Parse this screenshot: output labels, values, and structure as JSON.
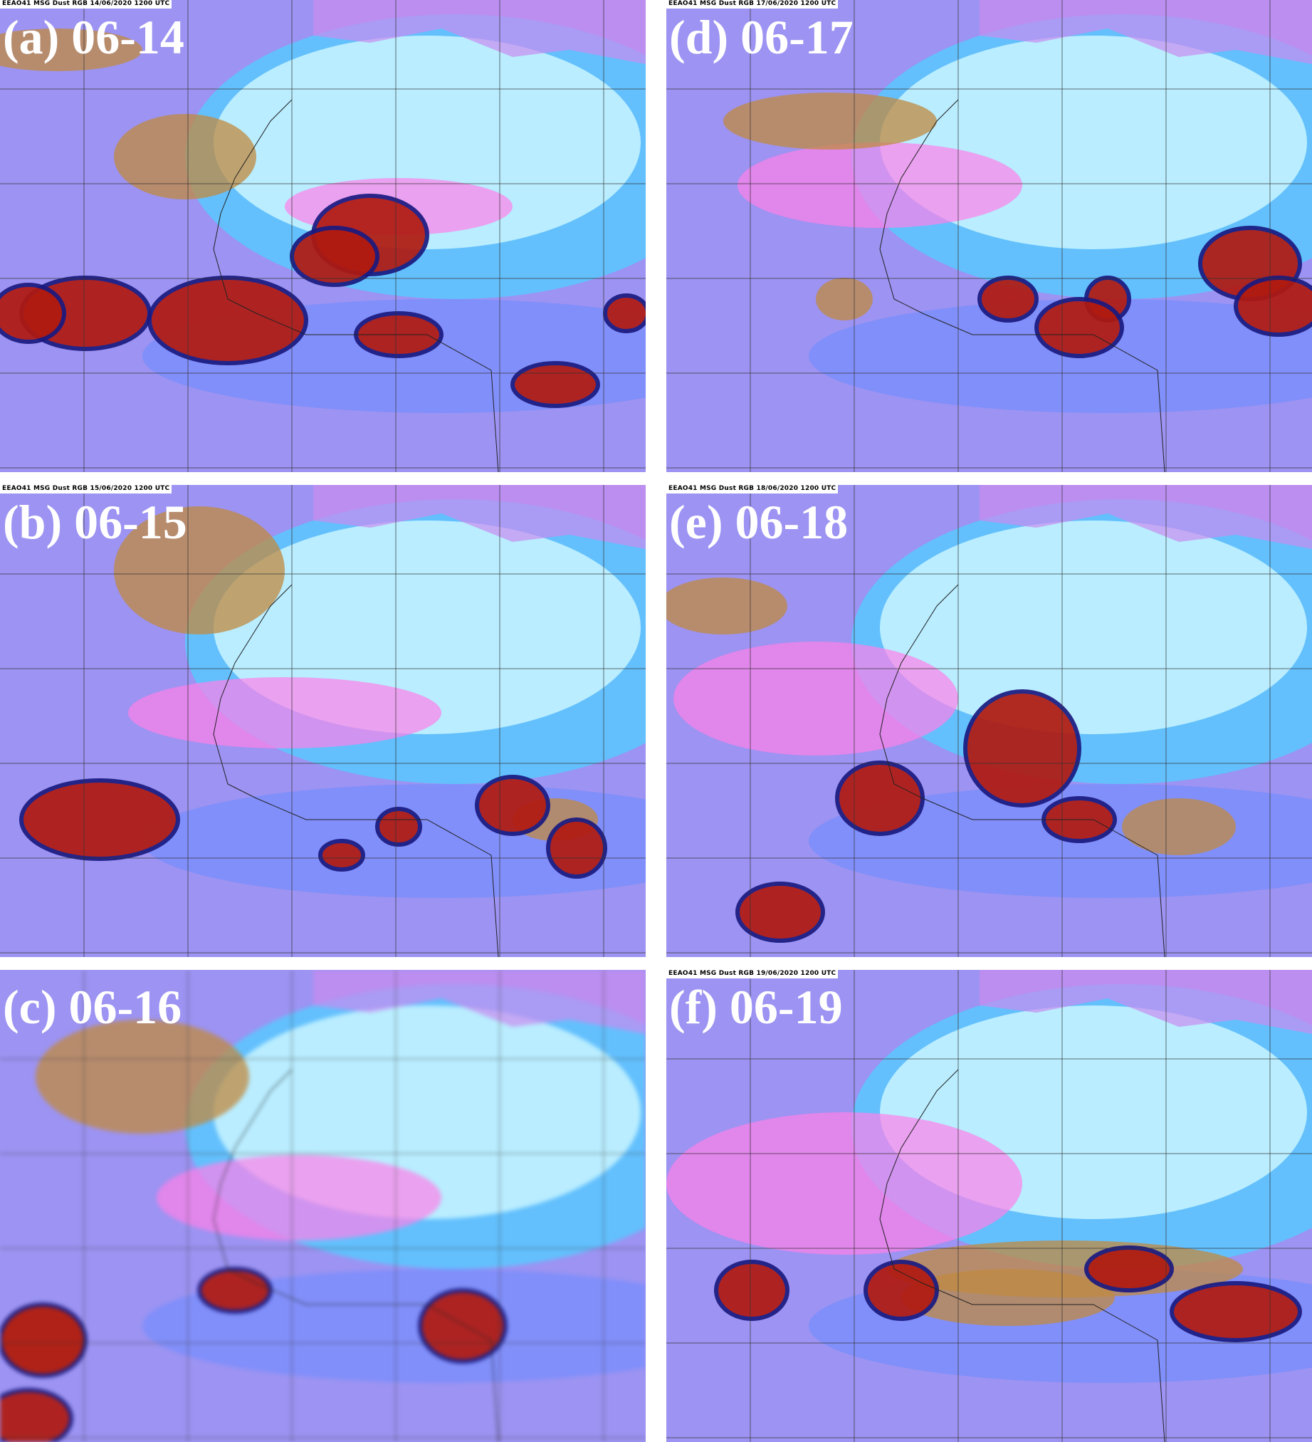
{
  "panels": [
    {
      "label": "(a) 06-14",
      "header": "EEAO41 MSG Dust RGB 14/06/2020 1200 UTC"
    },
    {
      "label": "(b) 06-15",
      "header": "EEAO41 MSG Dust RGB 15/06/2020 1200 UTC"
    },
    {
      "label": "(c) 06-16",
      "header": ""
    },
    {
      "label": "(d) 06-17",
      "header": "EEAO41 MSG Dust RGB 17/06/2020 1200 UTC"
    },
    {
      "label": "(e) 06-18",
      "header": "EEAO41 MSG Dust RGB 18/06/2020 1200 UTC"
    },
    {
      "label": "(f) 06-19",
      "header": "EEAO41 MSG Dust RGB 19/06/2020 1200 UTC"
    }
  ],
  "colors": {
    "background_ocean": "#9c93f2",
    "dust": "#ff80e8",
    "desert_surface": "#c8f4ff",
    "deep_convective_cloud": "#b01a10",
    "mid_cloud": "#c08a40"
  }
}
